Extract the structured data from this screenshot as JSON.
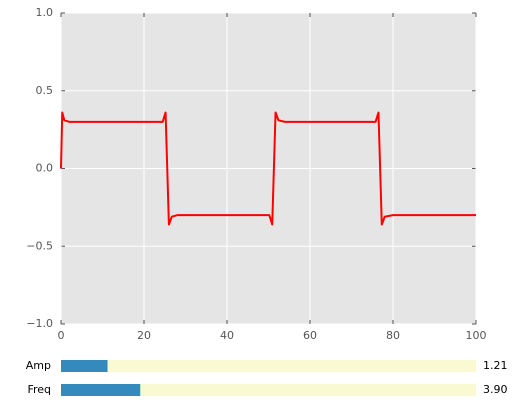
{
  "chart_data": {
    "type": "line",
    "x": [
      0,
      0.3,
      0.8,
      2,
      24.5,
      25.2,
      25.6,
      26.0,
      26.7,
      28,
      50.2,
      50.9,
      51.3,
      51.7,
      52.4,
      54,
      75.8,
      76.5,
      76.9,
      77.3,
      78,
      80,
      100
    ],
    "series": [
      {
        "color": "#ff0000",
        "values": [
          0,
          0.36,
          0.31,
          0.3,
          0.3,
          0.36,
          0,
          -0.36,
          -0.31,
          -0.3,
          -0.3,
          -0.36,
          0,
          0.36,
          0.31,
          0.3,
          0.3,
          0.36,
          0,
          -0.36,
          -0.31,
          -0.3,
          -0.3
        ]
      }
    ],
    "xlim": [
      0,
      100
    ],
    "ylim": [
      -1,
      1
    ],
    "xticks": [
      0,
      20,
      40,
      60,
      80,
      100
    ],
    "yticks": [
      {
        "value": -1,
        "label": "−1.0"
      },
      {
        "value": -0.5,
        "label": "−0.5"
      },
      {
        "value": 0,
        "label": "0.0"
      },
      {
        "value": 0.5,
        "label": "0.5"
      },
      {
        "value": 1,
        "label": "1.0"
      }
    ],
    "grid": true,
    "sliders": [
      {
        "label": "Amp",
        "value": 1.21,
        "value_label": "1.21",
        "lim": [
          0.1,
          10
        ],
        "color": "#348abd"
      },
      {
        "label": "Freq",
        "value": 3.9,
        "value_label": "3.90",
        "lim": [
          0.1,
          20
        ],
        "color": "#348abd"
      }
    ]
  }
}
